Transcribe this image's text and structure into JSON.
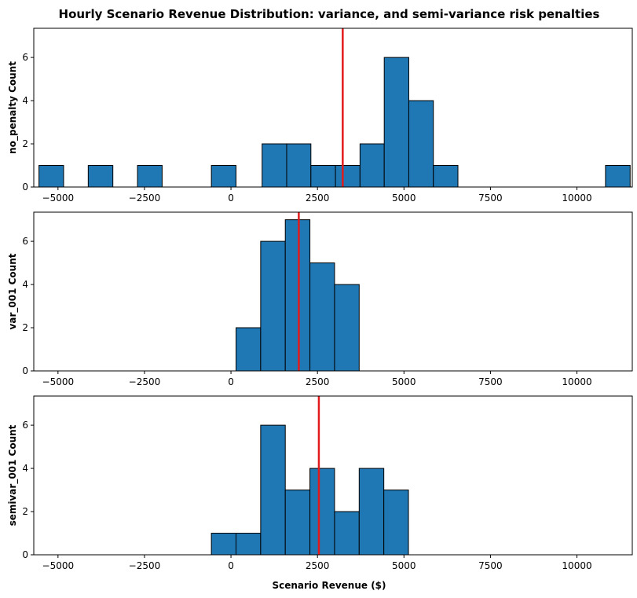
{
  "chart_data": {
    "type": "bar",
    "title": "Hourly Scenario Revenue Distribution: variance, and semi-variance risk penalties",
    "xlabel": "Scenario Revenue ($)",
    "xlim": [
      -5700,
      11600
    ],
    "ylim": [
      0,
      7.35
    ],
    "x_ticks": [
      -5000,
      -2500,
      0,
      2500,
      5000,
      7500,
      10000
    ],
    "x_tick_labels": [
      "−5000",
      "−2500",
      "0",
      "2500",
      "5000",
      "7500",
      "10000"
    ],
    "y_ticks": [
      0,
      2,
      4,
      6
    ],
    "y_tick_labels": [
      "0",
      "2",
      "4",
      "6"
    ],
    "bar_color": "#1f77b4",
    "mean_line_color": "#e31a1c",
    "bin_edges": [
      -5550,
      -4838,
      -4126,
      -3414,
      -2702,
      -1990,
      -1278,
      -566,
      146,
      858,
      1570,
      2282,
      2994,
      3706,
      4418,
      5130,
      5842,
      6554,
      7266,
      7978,
      8690,
      9402,
      10114,
      10826,
      11538
    ],
    "panels": [
      {
        "ylabel": "no_penalty Count",
        "mean": 3230,
        "counts": [
          1,
          0,
          1,
          0,
          1,
          0,
          0,
          1,
          0,
          0,
          0,
          0,
          0,
          0,
          0,
          0,
          0,
          0,
          0,
          0,
          0,
          0,
          0,
          1
        ],
        "fine_edges": [
          900,
          1610,
          2310,
          3020,
          3730,
          4430,
          5140,
          5850,
          6560
        ],
        "fine_counts": [
          2,
          2,
          1,
          1,
          2,
          6,
          4,
          1
        ],
        "note": ""
      },
      {
        "ylabel": "var_001 Count",
        "mean": 1960,
        "counts": [],
        "fine_edges": [
          146,
          858,
          1570,
          2282,
          2994,
          3706
        ],
        "fine_counts": [
          2,
          6,
          7,
          5,
          4
        ],
        "note": ""
      },
      {
        "ylabel": "semivar_001 Count",
        "mean": 2540,
        "counts": [],
        "fine_edges": [
          -566,
          146,
          858,
          1570,
          2282,
          2994,
          3706,
          4418,
          5130
        ],
        "fine_counts": [
          1,
          1,
          6,
          3,
          4,
          2,
          4,
          3
        ],
        "note": ""
      }
    ]
  }
}
